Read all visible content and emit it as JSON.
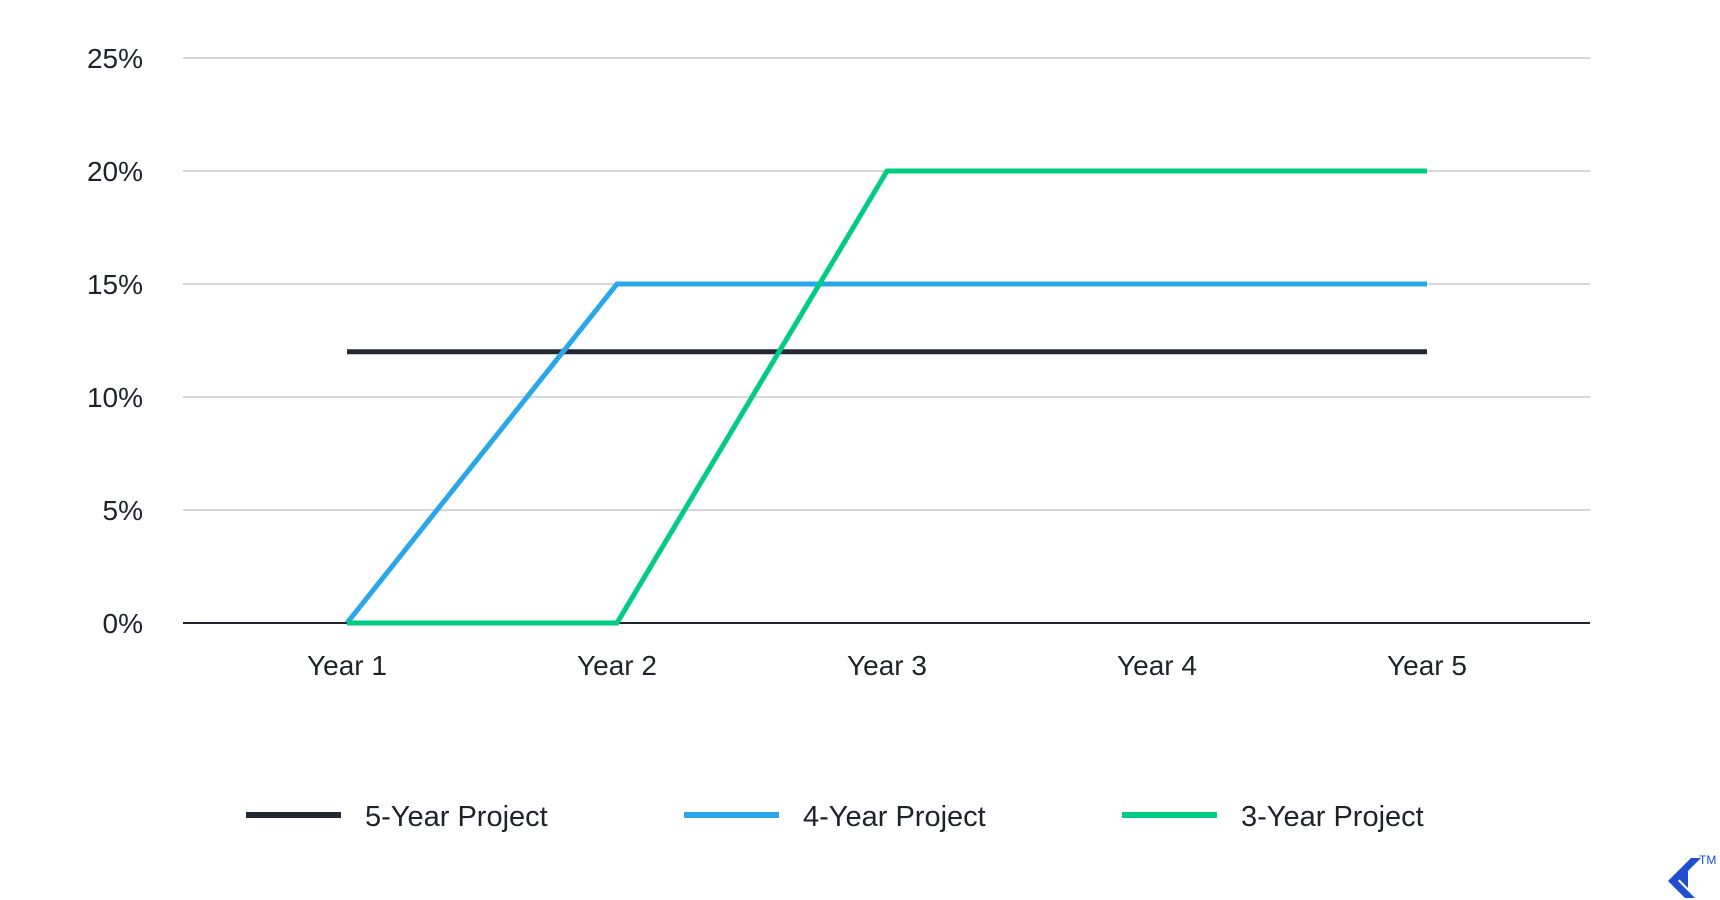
{
  "chart_data": {
    "type": "line",
    "categories": [
      "Year 1",
      "Year 2",
      "Year 3",
      "Year 4",
      "Year 5"
    ],
    "yticks": [
      "0%",
      "5%",
      "10%",
      "15%",
      "20%",
      "25%"
    ],
    "ylim": [
      0,
      25
    ],
    "grid": true,
    "legend_position": "bottom",
    "series": [
      {
        "name": "5-Year Project",
        "color": "#232833",
        "values": [
          12,
          12,
          12,
          12,
          12
        ]
      },
      {
        "name": "4-Year Project",
        "color": "#29a7e8",
        "values": [
          0,
          15,
          15,
          15,
          15
        ]
      },
      {
        "name": "3-Year Project",
        "color": "#00cc83",
        "values": [
          0,
          0,
          20,
          20,
          20
        ]
      }
    ]
  },
  "logo": {
    "trademark": "TM",
    "color": "#204ecf"
  }
}
